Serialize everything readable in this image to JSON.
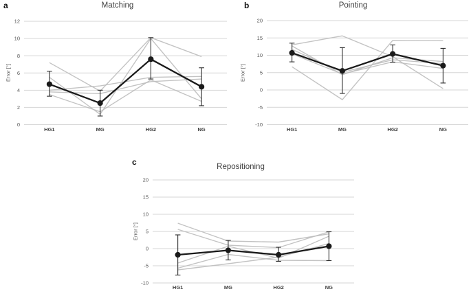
{
  "figure": {
    "background": "#ffffff",
    "description": "Three-panel line figure showing error in degrees per condition"
  },
  "colors": {
    "gridline": "#d6d6d6",
    "individual_line": "#bdbdbd",
    "mean_line": "#1a1a1a",
    "error_bar": "#2b2b2b",
    "tick_text": "#555555",
    "category_text": "#3f3f3f",
    "title_text": "#3f3f3f"
  },
  "chart_data": [
    {
      "id": "a",
      "panel_label": "a",
      "type": "line",
      "title": "Matching",
      "xlabel": "",
      "ylabel": "Error [°]",
      "categories": [
        "HG1",
        "MG",
        "HG2",
        "NG"
      ],
      "ylim": [
        0,
        12
      ],
      "yticks": [
        12,
        10,
        8,
        6,
        4,
        2,
        0
      ],
      "grid": true,
      "legend": "none",
      "series": [
        {
          "name": "individual-1",
          "values": [
            7.2,
            3.9,
            10.1,
            7.9
          ]
        },
        {
          "name": "individual-2",
          "values": [
            5.5,
            1.2,
            10.0,
            3.0
          ]
        },
        {
          "name": "individual-3",
          "values": [
            4.0,
            4.5,
            5.5,
            5.6
          ]
        },
        {
          "name": "individual-4",
          "values": [
            3.8,
            3.6,
            5.0,
            5.3
          ]
        },
        {
          "name": "individual-5",
          "values": [
            3.5,
            1.5,
            5.2,
            2.7
          ]
        }
      ],
      "mean_series": {
        "name": "mean",
        "values": [
          4.7,
          2.5,
          7.6,
          4.4
        ],
        "error_bar_lower": [
          3.3,
          1.0,
          5.3,
          2.2
        ],
        "error_bar_upper": [
          6.2,
          4.0,
          10.1,
          6.6
        ]
      }
    },
    {
      "id": "b",
      "panel_label": "b",
      "type": "line",
      "title": "Pointing",
      "xlabel": "",
      "ylabel": "Error [°]",
      "categories": [
        "HG1",
        "MG",
        "HG2",
        "NG"
      ],
      "ylim": [
        -10,
        20
      ],
      "yticks": [
        20,
        15,
        10,
        5,
        0,
        -5,
        -10
      ],
      "grid": true,
      "legend": "none",
      "series": [
        {
          "name": "individual-1",
          "values": [
            6.7,
            -2.8,
            14.3,
            14.2
          ]
        },
        {
          "name": "individual-2",
          "values": [
            13.0,
            15.6,
            9.6,
            0.4
          ]
        },
        {
          "name": "individual-3",
          "values": [
            12.7,
            4.4,
            9.3,
            8.2
          ]
        },
        {
          "name": "individual-4",
          "values": [
            11.7,
            5.1,
            8.7,
            7.6
          ]
        },
        {
          "name": "individual-5",
          "values": [
            10.4,
            4.6,
            8.1,
            6.2
          ]
        }
      ],
      "mean_series": {
        "name": "mean",
        "values": [
          10.7,
          5.5,
          10.4,
          7.0
        ],
        "error_bar_lower": [
          8.1,
          -1.0,
          8.0,
          2.0
        ],
        "error_bar_upper": [
          13.5,
          12.2,
          13.0,
          12.0
        ]
      }
    },
    {
      "id": "c",
      "panel_label": "c",
      "type": "line",
      "title": "Repositioning",
      "xlabel": "",
      "ylabel": "Error [°]",
      "categories": [
        "HG1",
        "MG",
        "HG2",
        "NG"
      ],
      "ylim": [
        -10,
        20
      ],
      "yticks": [
        20,
        15,
        10,
        5,
        0,
        -5,
        -10
      ],
      "grid": true,
      "legend": "none",
      "series": [
        {
          "name": "individual-1",
          "values": [
            7.4,
            2.2,
            1.9,
            4.3
          ]
        },
        {
          "name": "individual-2",
          "values": [
            5.6,
            1.0,
            0.3,
            4.9
          ]
        },
        {
          "name": "individual-3",
          "values": [
            -4.2,
            0.7,
            -2.8,
            3.6
          ]
        },
        {
          "name": "individual-4",
          "values": [
            -5.7,
            -1.7,
            -3.4,
            -3.5
          ]
        },
        {
          "name": "individual-5",
          "values": [
            -6.2,
            -4.4,
            -2.5,
            1.5
          ]
        }
      ],
      "mean_series": {
        "name": "mean",
        "values": [
          -1.8,
          -0.5,
          -1.8,
          0.7
        ],
        "error_bar_lower": [
          -7.7,
          -3.3,
          -3.7,
          -3.5
        ],
        "error_bar_upper": [
          4.0,
          2.4,
          0.4,
          4.9
        ]
      }
    }
  ]
}
